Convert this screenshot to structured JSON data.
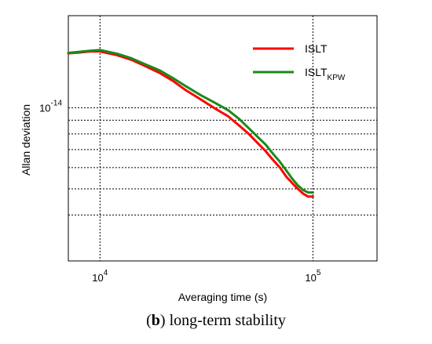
{
  "caption": {
    "prefix": "(",
    "letter": "b",
    "suffix": ") long-term stability"
  },
  "chart_data": {
    "type": "line",
    "xlabel": "Averaging time (s)",
    "ylabel": "Allan deviation",
    "xscale": "log",
    "yscale": "log",
    "xlim": [
      7100,
      200000
    ],
    "ylim": [
      2.7e-15,
      2.2e-14
    ],
    "x_ticks": [
      {
        "value": 10000,
        "base": "10",
        "exp": "4"
      },
      {
        "value": 100000,
        "base": "10",
        "exp": "5"
      }
    ],
    "y_ticks": [
      {
        "value": 1e-14,
        "base": "10",
        "exp": "-14"
      }
    ],
    "grid": "dotted at x = 1e4, 1e5 and y = 1e-14 … 4e-15 (1e-15 steps)",
    "legend_position": "top-right",
    "series": [
      {
        "name": "ISLT",
        "name_sub": "",
        "color": "#ff0000",
        "x": [
          7100,
          8000,
          9000,
          10000,
          12000,
          14000,
          16000,
          19000,
          22000,
          25000,
          30000,
          35000,
          40000,
          45000,
          50000,
          55000,
          60000,
          65000,
          70000,
          75000,
          80000,
          85000,
          90000,
          95000,
          100000
        ],
        "y": [
          1.595e-14,
          1.605e-14,
          1.62e-14,
          1.62e-14,
          1.57e-14,
          1.51e-14,
          1.44e-14,
          1.35e-14,
          1.26e-14,
          1.17e-14,
          1.07e-14,
          9.9e-15,
          9.3e-15,
          8.6e-15,
          8e-15,
          7.4e-15,
          6.9e-15,
          6.4e-15,
          6e-15,
          5.55e-15,
          5.25e-15,
          5e-15,
          4.8e-15,
          4.68e-15,
          4.68e-15
        ]
      },
      {
        "name": "ISLT",
        "name_sub": "KPW",
        "color": "#1a8a1a",
        "x": [
          7100,
          8000,
          9000,
          10000,
          12000,
          14000,
          16000,
          19000,
          22000,
          25000,
          30000,
          35000,
          40000,
          45000,
          50000,
          55000,
          60000,
          65000,
          70000,
          75000,
          80000,
          85000,
          90000,
          95000,
          100000
        ],
        "y": [
          1.6e-14,
          1.615e-14,
          1.63e-14,
          1.64e-14,
          1.59e-14,
          1.53e-14,
          1.46e-14,
          1.38e-14,
          1.29e-14,
          1.21e-14,
          1.11e-14,
          1.04e-14,
          9.8e-15,
          9.1e-15,
          8.4e-15,
          7.8e-15,
          7.3e-15,
          6.75e-15,
          6.3e-15,
          5.85e-15,
          5.45e-15,
          5.15e-15,
          4.95e-15,
          4.85e-15,
          4.85e-15
        ]
      }
    ]
  }
}
